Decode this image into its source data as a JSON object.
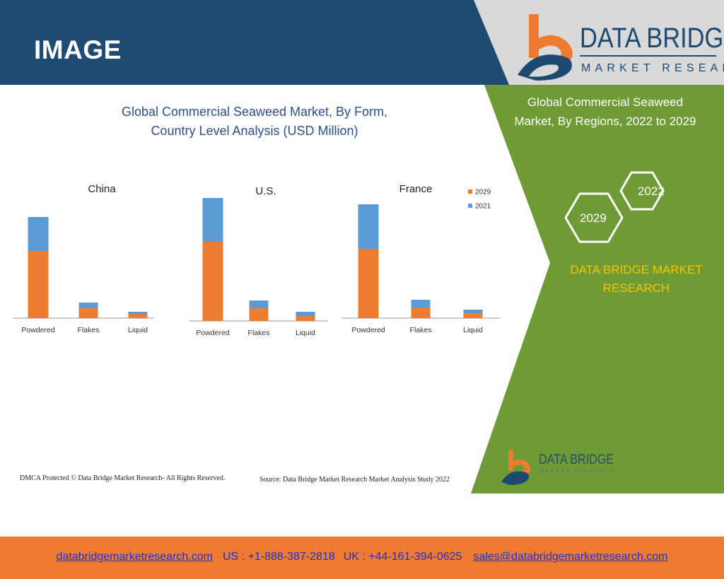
{
  "header": {
    "title": "IMAGE",
    "logo_name": "DATA BRIDGE",
    "logo_sub": "MARKET RESEARCH"
  },
  "main": {
    "chart_title_line1": "Global Commercial Seaweed Market, By Form,",
    "chart_title_line2": "Country Level Analysis (USD Million)"
  },
  "side_panel": {
    "title_line1": "Global Commercial Seaweed",
    "title_line2": "Market, By Regions, 2022 to 2029",
    "hex_year_a": "2022",
    "hex_year_b": "2029",
    "brand_line1": "DATA BRIDGE MARKET",
    "brand_line2": "RESEARCH",
    "mini_logo_name": "DATA BRIDGE",
    "mini_logo_sub": "MARKET RESEARCH"
  },
  "colors": {
    "header_blue": "#1f4a72",
    "panel_green": "#6f9b36",
    "series_2029": "#ed7d31",
    "series_2021": "#5b9bd5",
    "footer_orange": "#ef7b30",
    "accent_yellow": "#f5c400"
  },
  "chart_data": [
    {
      "type": "bar",
      "stacked": true,
      "title": "China",
      "categories": [
        "Powdered",
        "Flakes",
        "Liquid"
      ],
      "series": [
        {
          "name": "2029",
          "values": [
            95,
            14,
            6
          ]
        },
        {
          "name": "2021",
          "values": [
            48,
            8,
            3
          ]
        }
      ],
      "ylim": [
        0,
        170
      ]
    },
    {
      "type": "bar",
      "stacked": true,
      "title": "U.S.",
      "categories": [
        "Powdered",
        "Flakes",
        "Liquid"
      ],
      "series": [
        {
          "name": "2029",
          "values": [
            112,
            18,
            7
          ]
        },
        {
          "name": "2021",
          "values": [
            62,
            11,
            6
          ]
        }
      ],
      "ylim": [
        0,
        170
      ]
    },
    {
      "type": "bar",
      "stacked": true,
      "title": "France",
      "categories": [
        "Powdered",
        "Flakes",
        "Liquid"
      ],
      "series": [
        {
          "name": "2029",
          "values": [
            98,
            15,
            7
          ]
        },
        {
          "name": "2021",
          "values": [
            63,
            11,
            5
          ]
        }
      ],
      "ylim": [
        0,
        170
      ],
      "legend": "top-right"
    }
  ],
  "footer": {
    "website": "databridgemarketresearch.com",
    "us_phone": "US : +1-888-387-2818",
    "uk_phone": "UK : +44-161-394-0625",
    "email": "sales@databridgemarketresearch.com",
    "dmca": "DMCA Protected © Data Bridge Market Research- All Rights Reserved.",
    "source": "Source: Data Bridge Market Research Market Analysis Study 2022"
  }
}
